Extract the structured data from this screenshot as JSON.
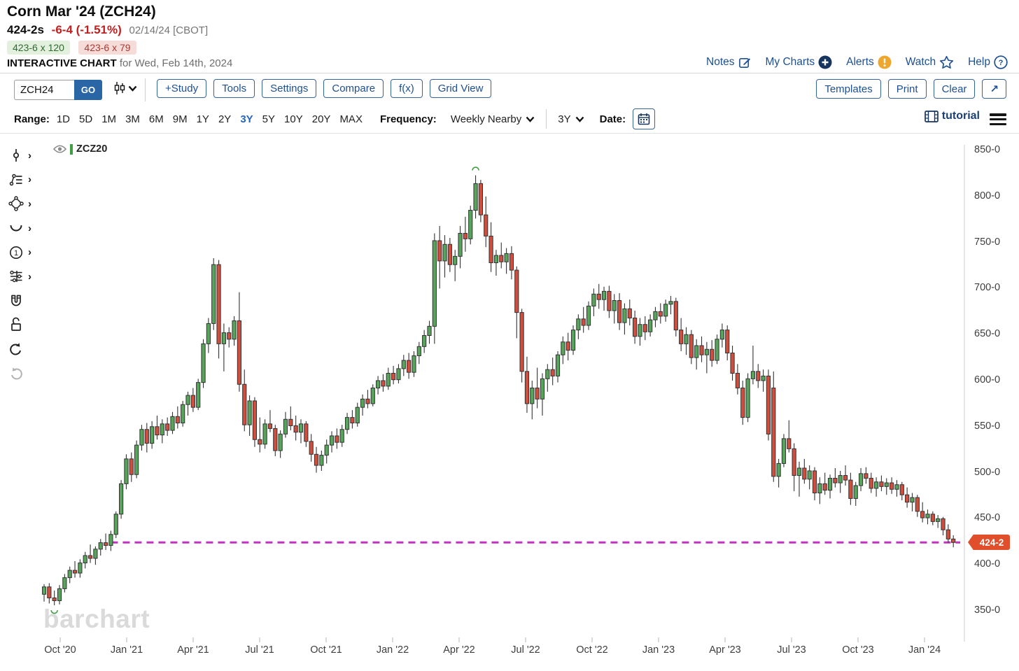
{
  "header": {
    "title": "Corn Mar '24 (ZCH24)",
    "last_price": "424-2s",
    "change": "-6-4 (-1.51%)",
    "date_exchange": "02/14/24 [CBOT]",
    "bid": "423-6 x 120",
    "ask": "423-6 x 79",
    "chart_label": "INTERACTIVE CHART",
    "chart_label_suffix": "for Wed, Feb 14th, 2024",
    "links": [
      {
        "label": "Notes",
        "icon": "notes-edit-icon"
      },
      {
        "label": "My Charts",
        "icon": "plus-circle-icon"
      },
      {
        "label": "Alerts",
        "icon": "alert-exclamation-icon"
      },
      {
        "label": "Watch",
        "icon": "star-icon"
      },
      {
        "label": "Help",
        "icon": "question-circle-icon"
      }
    ]
  },
  "toolbar": {
    "symbol_value": "ZCH24",
    "go_label": "GO",
    "chart_type_icon": "candlestick-type-icon",
    "buttons": [
      "+Study",
      "Tools",
      "Settings",
      "Compare",
      "f(x)",
      "Grid View"
    ],
    "right_buttons": [
      "Templates",
      "Print",
      "Clear"
    ],
    "expand_label": "↗"
  },
  "range_bar": {
    "range_label": "Range:",
    "ranges": [
      "1D",
      "5D",
      "1M",
      "3M",
      "6M",
      "9M",
      "1Y",
      "2Y",
      "3Y",
      "5Y",
      "10Y",
      "20Y",
      "MAX"
    ],
    "selected_range": "3Y",
    "frequency_label": "Frequency:",
    "frequency_value": "Weekly Nearby",
    "period_value": "3Y",
    "date_label": "Date:",
    "tutorial_label": "tutorial"
  },
  "chart": {
    "legend_symbol": "ZCZ20",
    "watermark": "barchart",
    "last_price_tag": "424-2",
    "colors": {
      "up": "#57a55a",
      "down": "#cf4e3d",
      "outline": "#333333",
      "support_line": "#c232c2",
      "price_tag": "#e04e2b",
      "marker": "#3f9e42"
    }
  },
  "chart_data": {
    "type": "candlestick-ohlc",
    "title": "Corn Mar '24 (ZCH24) - Weekly Nearby - 3Y",
    "legend": "ZCZ20",
    "frequency": "Weekly Nearby",
    "ylim": [
      318,
      865
    ],
    "y_tick_values": [
      850,
      800,
      750,
      700,
      650,
      600,
      550,
      500,
      450,
      400,
      350
    ],
    "y_tick_labels": [
      "850-0",
      "800-0",
      "750-0",
      "700-0",
      "650-0",
      "600-0",
      "550-0",
      "500-0",
      "450-0",
      "400-0",
      "350-0"
    ],
    "x_tick_labels": [
      "Oct '20",
      "Jan '21",
      "Apr '21",
      "Jul '21",
      "Oct '21",
      "Jan '22",
      "Apr '22",
      "Jul '22",
      "Oct '22",
      "Jan '23",
      "Apr '23",
      "Jul '23",
      "Oct '23",
      "Jan '24"
    ],
    "support_line_value": 424.25,
    "support_line_start_week": 13,
    "last_close_label": "424-2",
    "high_marker_week": 84,
    "low_marker_week": 2,
    "grid": false,
    "legend_position": "top-left",
    "candles": [
      [
        368,
        379,
        360,
        376
      ],
      [
        376,
        380,
        358,
        364
      ],
      [
        364,
        372,
        356,
        361
      ],
      [
        361,
        378,
        357,
        374
      ],
      [
        374,
        390,
        370,
        386
      ],
      [
        386,
        398,
        380,
        394
      ],
      [
        394,
        404,
        386,
        391
      ],
      [
        391,
        406,
        386,
        402
      ],
      [
        402,
        414,
        396,
        410
      ],
      [
        410,
        422,
        402,
        407
      ],
      [
        407,
        420,
        400,
        417
      ],
      [
        417,
        428,
        410,
        424
      ],
      [
        424,
        434,
        416,
        421
      ],
      [
        421,
        437,
        415,
        433
      ],
      [
        433,
        458,
        429,
        455
      ],
      [
        455,
        492,
        450,
        488
      ],
      [
        488,
        520,
        482,
        515
      ],
      [
        515,
        522,
        490,
        498
      ],
      [
        498,
        535,
        494,
        530
      ],
      [
        530,
        552,
        524,
        547
      ],
      [
        547,
        554,
        522,
        532
      ],
      [
        532,
        556,
        526,
        550
      ],
      [
        550,
        562,
        536,
        541
      ],
      [
        541,
        558,
        532,
        553
      ],
      [
        553,
        560,
        540,
        546
      ],
      [
        546,
        566,
        542,
        561
      ],
      [
        561,
        572,
        548,
        554
      ],
      [
        554,
        578,
        550,
        574
      ],
      [
        574,
        588,
        562,
        584
      ],
      [
        584,
        592,
        566,
        571
      ],
      [
        571,
        602,
        568,
        598
      ],
      [
        598,
        645,
        592,
        640
      ],
      [
        640,
        668,
        630,
        662
      ],
      [
        662,
        733,
        655,
        726
      ],
      [
        726,
        731,
        624,
        640
      ],
      [
        640,
        662,
        610,
        652
      ],
      [
        652,
        658,
        636,
        645
      ],
      [
        645,
        670,
        638,
        665
      ],
      [
        665,
        696,
        588,
        596
      ],
      [
        596,
        612,
        545,
        552
      ],
      [
        552,
        584,
        540,
        578
      ],
      [
        578,
        582,
        528,
        536
      ],
      [
        536,
        560,
        522,
        531
      ],
      [
        531,
        558,
        526,
        553
      ],
      [
        553,
        568,
        544,
        548
      ],
      [
        548,
        552,
        518,
        524
      ],
      [
        524,
        546,
        516,
        542
      ],
      [
        542,
        566,
        538,
        558
      ],
      [
        558,
        572,
        546,
        551
      ],
      [
        551,
        562,
        535,
        544
      ],
      [
        544,
        558,
        532,
        553
      ],
      [
        553,
        556,
        528,
        534
      ],
      [
        534,
        542,
        512,
        520
      ],
      [
        520,
        528,
        500,
        508
      ],
      [
        508,
        524,
        502,
        519
      ],
      [
        519,
        536,
        510,
        530
      ],
      [
        530,
        545,
        522,
        540
      ],
      [
        540,
        548,
        526,
        533
      ],
      [
        533,
        552,
        528,
        547
      ],
      [
        547,
        565,
        542,
        560
      ],
      [
        560,
        568,
        548,
        554
      ],
      [
        554,
        576,
        550,
        571
      ],
      [
        571,
        585,
        562,
        580
      ],
      [
        580,
        590,
        570,
        575
      ],
      [
        575,
        596,
        572,
        592
      ],
      [
        592,
        605,
        585,
        600
      ],
      [
        600,
        607,
        588,
        594
      ],
      [
        594,
        614,
        590,
        608
      ],
      [
        608,
        616,
        596,
        601
      ],
      [
        601,
        618,
        597,
        613
      ],
      [
        613,
        628,
        605,
        622
      ],
      [
        622,
        630,
        602,
        609
      ],
      [
        609,
        632,
        604,
        627
      ],
      [
        627,
        642,
        618,
        637
      ],
      [
        637,
        655,
        630,
        649
      ],
      [
        649,
        665,
        640,
        659
      ],
      [
        659,
        760,
        640,
        752
      ],
      [
        752,
        768,
        700,
        730
      ],
      [
        730,
        758,
        712,
        748
      ],
      [
        748,
        755,
        718,
        726
      ],
      [
        726,
        742,
        708,
        735
      ],
      [
        735,
        768,
        722,
        760
      ],
      [
        760,
        778,
        740,
        754
      ],
      [
        754,
        790,
        748,
        785
      ],
      [
        785,
        823,
        776,
        814
      ],
      [
        814,
        818,
        772,
        780
      ],
      [
        780,
        800,
        745,
        757
      ],
      [
        757,
        772,
        718,
        728
      ],
      [
        728,
        742,
        714,
        736
      ],
      [
        736,
        750,
        722,
        729
      ],
      [
        729,
        744,
        716,
        738
      ],
      [
        738,
        746,
        710,
        720
      ],
      [
        720,
        724,
        646,
        674
      ],
      [
        674,
        678,
        598,
        610
      ],
      [
        610,
        626,
        565,
        575
      ],
      [
        575,
        600,
        558,
        592
      ],
      [
        592,
        614,
        570,
        580
      ],
      [
        580,
        608,
        562,
        602
      ],
      [
        602,
        618,
        588,
        612
      ],
      [
        612,
        625,
        595,
        605
      ],
      [
        605,
        632,
        598,
        628
      ],
      [
        628,
        648,
        618,
        642
      ],
      [
        642,
        652,
        622,
        633
      ],
      [
        633,
        660,
        628,
        655
      ],
      [
        655,
        672,
        645,
        667
      ],
      [
        667,
        680,
        652,
        660
      ],
      [
        660,
        686,
        655,
        681
      ],
      [
        681,
        700,
        670,
        694
      ],
      [
        694,
        705,
        678,
        688
      ],
      [
        688,
        702,
        676,
        697
      ],
      [
        697,
        703,
        668,
        676
      ],
      [
        676,
        694,
        662,
        687
      ],
      [
        687,
        695,
        655,
        663
      ],
      [
        663,
        684,
        650,
        678
      ],
      [
        678,
        688,
        660,
        668
      ],
      [
        668,
        676,
        640,
        648
      ],
      [
        648,
        668,
        638,
        661
      ],
      [
        661,
        670,
        644,
        653
      ],
      [
        653,
        672,
        648,
        666
      ],
      [
        666,
        680,
        658,
        675
      ],
      [
        675,
        684,
        662,
        670
      ],
      [
        670,
        688,
        664,
        683
      ],
      [
        683,
        692,
        672,
        686
      ],
      [
        686,
        690,
        648,
        655
      ],
      [
        655,
        668,
        632,
        640
      ],
      [
        640,
        658,
        628,
        650
      ],
      [
        650,
        655,
        618,
        625
      ],
      [
        625,
        645,
        612,
        638
      ],
      [
        638,
        648,
        620,
        628
      ],
      [
        628,
        642,
        608,
        634
      ],
      [
        634,
        644,
        615,
        622
      ],
      [
        622,
        650,
        618,
        645
      ],
      [
        645,
        662,
        636,
        655
      ],
      [
        655,
        660,
        622,
        630
      ],
      [
        630,
        638,
        600,
        608
      ],
      [
        608,
        618,
        585,
        592
      ],
      [
        592,
        600,
        552,
        560
      ],
      [
        560,
        608,
        555,
        602
      ],
      [
        602,
        638,
        596,
        610
      ],
      [
        610,
        618,
        592,
        600
      ],
      [
        600,
        612,
        588,
        605
      ],
      [
        605,
        612,
        535,
        542
      ],
      [
        592,
        610,
        490,
        496
      ],
      [
        496,
        515,
        484,
        510
      ],
      [
        510,
        542,
        506,
        537
      ],
      [
        537,
        557,
        522,
        526
      ],
      [
        526,
        532,
        480,
        497
      ],
      [
        497,
        512,
        474,
        505
      ],
      [
        505,
        515,
        488,
        493
      ],
      [
        493,
        508,
        482,
        502
      ],
      [
        502,
        506,
        470,
        478
      ],
      [
        478,
        495,
        466,
        488
      ],
      [
        488,
        500,
        476,
        481
      ],
      [
        481,
        498,
        472,
        494
      ],
      [
        494,
        505,
        484,
        489
      ],
      [
        489,
        502,
        478,
        497
      ],
      [
        497,
        508,
        486,
        492
      ],
      [
        492,
        500,
        465,
        472
      ],
      [
        472,
        490,
        464,
        486
      ],
      [
        486,
        505,
        480,
        499
      ],
      [
        499,
        506,
        488,
        494
      ],
      [
        494,
        500,
        478,
        483
      ],
      [
        483,
        495,
        474,
        490
      ],
      [
        490,
        497,
        480,
        485
      ],
      [
        485,
        494,
        476,
        489
      ],
      [
        489,
        495,
        477,
        482
      ],
      [
        482,
        492,
        474,
        487
      ],
      [
        487,
        490,
        470,
        476
      ],
      [
        476,
        484,
        462,
        468
      ],
      [
        468,
        478,
        458,
        473
      ],
      [
        473,
        476,
        452,
        458
      ],
      [
        458,
        468,
        446,
        451
      ],
      [
        451,
        460,
        444,
        455
      ],
      [
        455,
        458,
        443,
        447
      ],
      [
        447,
        454,
        440,
        450
      ],
      [
        450,
        452,
        432,
        438
      ],
      [
        438,
        444,
        424,
        428
      ],
      [
        428,
        432,
        419,
        424.25
      ]
    ]
  }
}
